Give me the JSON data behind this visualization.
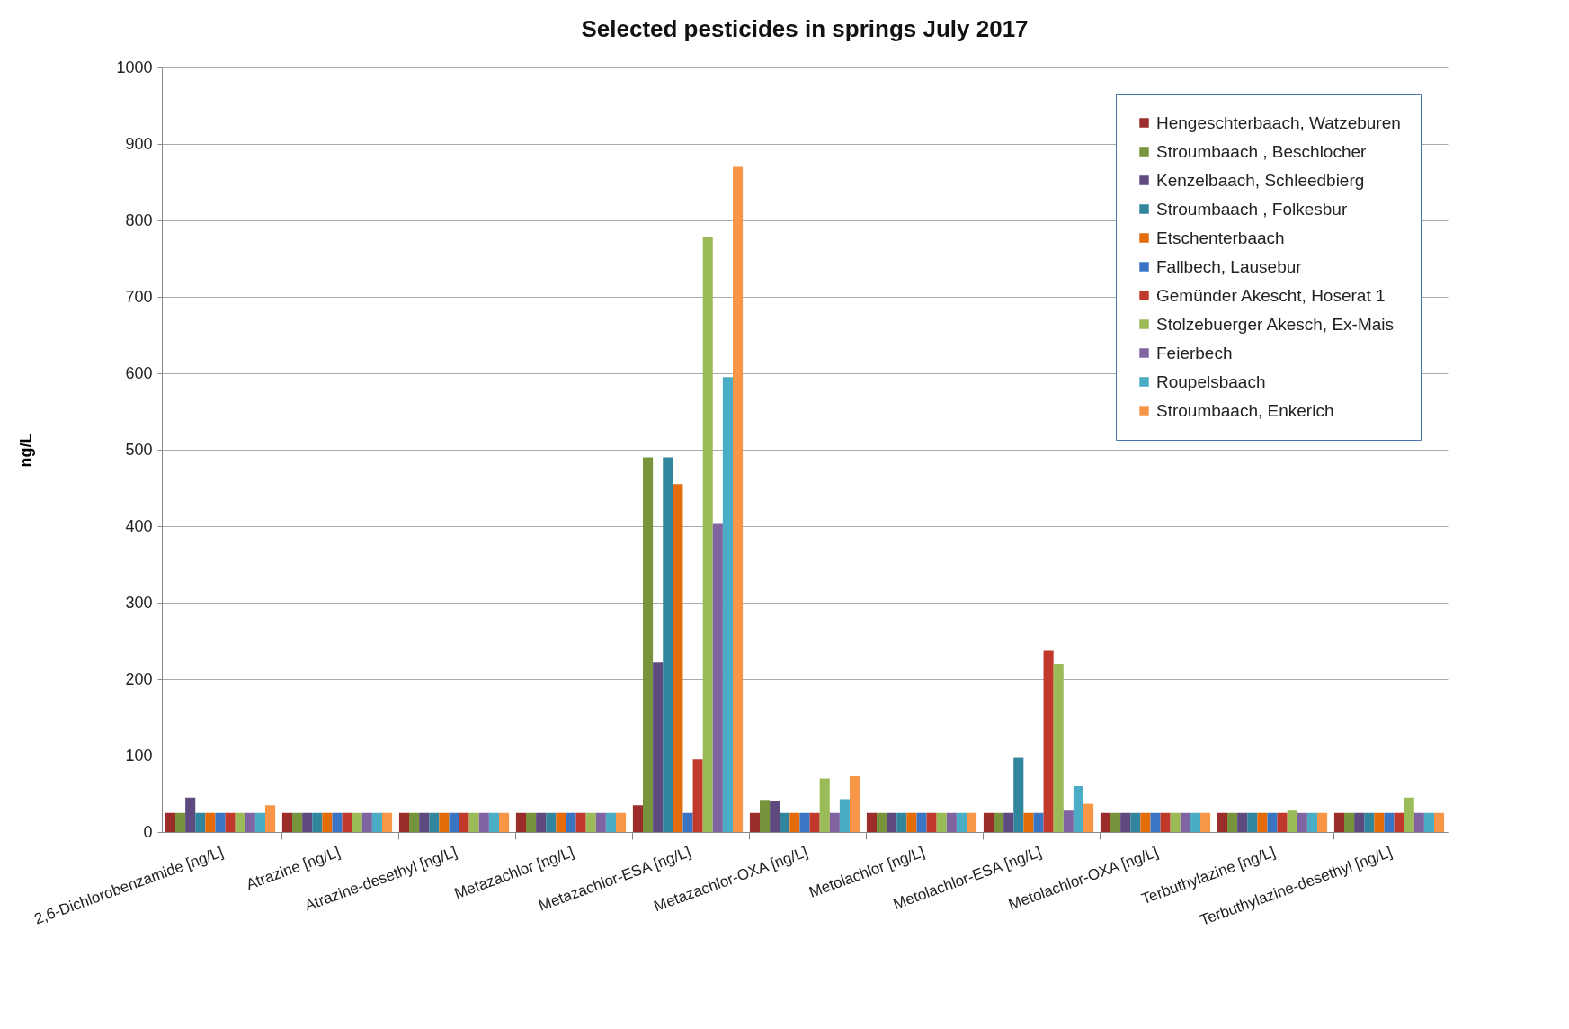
{
  "chart_data": {
    "type": "bar",
    "title": "Selected pesticides in springs July 2017",
    "ylabel": "ng/L",
    "categories": [
      "2,6-Dichlorobenzamide [ng/L]",
      "Atrazine [ng/L]",
      "Atrazine-desethyl [ng/L]",
      "Metazachlor [ng/L]",
      "Metazachlor-ESA [ng/L]",
      "Metazachlor-OXA [ng/L]",
      "Metolachlor [ng/L]",
      "Metolachlor-ESA [ng/L]",
      "Metolachlor-OXA [ng/L]",
      "Terbuthylazine [ng/L]",
      "Terbuthylazine-desethyl [ng/L]"
    ],
    "series": [
      {
        "name": "Hengeschterbaach, Watzeburen",
        "color": "#9b2d2a",
        "values": [
          25,
          25,
          25,
          25,
          35,
          25,
          25,
          25,
          25,
          25,
          25
        ]
      },
      {
        "name": "Stroumbaach , Beschlocher",
        "color": "#77933c",
        "values": [
          25,
          25,
          25,
          25,
          490,
          42,
          25,
          25,
          25,
          25,
          25
        ]
      },
      {
        "name": "Kenzelbaach, Schleedbierg",
        "color": "#5f4a7f",
        "values": [
          45,
          25,
          25,
          25,
          222,
          40,
          25,
          25,
          25,
          25,
          25
        ]
      },
      {
        "name": "Stroumbaach , Folkesbur",
        "color": "#31859c",
        "values": [
          25,
          25,
          25,
          25,
          490,
          25,
          25,
          97,
          25,
          25,
          25
        ]
      },
      {
        "name": "Etschenterbaach",
        "color": "#e46c0a",
        "values": [
          25,
          25,
          25,
          25,
          455,
          25,
          25,
          25,
          25,
          25,
          25
        ]
      },
      {
        "name": "Fallbech, Lausebur",
        "color": "#3a75c4",
        "values": [
          25,
          25,
          25,
          25,
          25,
          25,
          25,
          25,
          25,
          25,
          25
        ]
      },
      {
        "name": "Gemünder Akescht, Hoserat 1",
        "color": "#c0392b",
        "values": [
          25,
          25,
          25,
          25,
          95,
          25,
          25,
          237,
          25,
          25,
          25
        ]
      },
      {
        "name": "Stolzebuerger Akesch, Ex-Mais",
        "color": "#9bbb59",
        "values": [
          25,
          25,
          25,
          25,
          778,
          70,
          25,
          220,
          25,
          28,
          45
        ]
      },
      {
        "name": "Feierbech",
        "color": "#8064a2",
        "values": [
          25,
          25,
          25,
          25,
          403,
          25,
          25,
          28,
          25,
          25,
          25
        ]
      },
      {
        "name": "Roupelsbaach",
        "color": "#4bacc6",
        "values": [
          25,
          25,
          25,
          25,
          595,
          43,
          25,
          60,
          25,
          25,
          25
        ]
      },
      {
        "name": "Stroumbaach, Enkerich",
        "color": "#f79646",
        "values": [
          35,
          25,
          25,
          25,
          870,
          73,
          25,
          37,
          25,
          25,
          25
        ]
      }
    ],
    "ylim": [
      0,
      1000
    ],
    "yticks": [
      0,
      100,
      200,
      300,
      400,
      500,
      600,
      700,
      800,
      900,
      1000
    ],
    "grid": "y",
    "legend": "top right"
  }
}
